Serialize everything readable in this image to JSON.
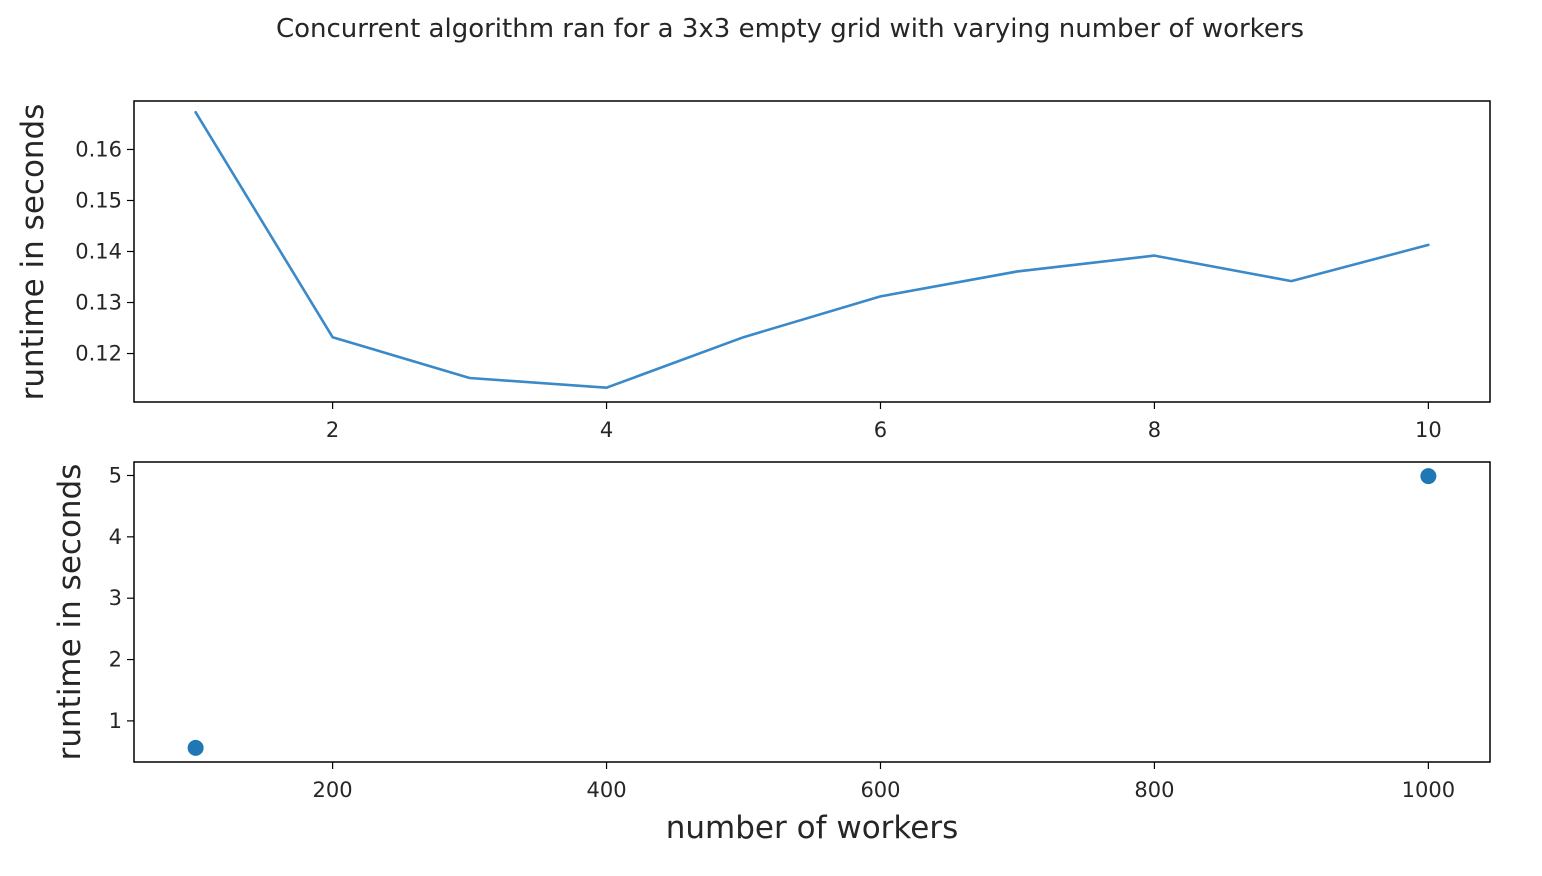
{
  "chart_data": {
    "title": "Concurrent algorithm ran for a 3x3 empty grid with varying number of workers",
    "charts": [
      {
        "type": "line",
        "xlabel": "",
        "ylabel": "runtime in seconds",
        "xlim": [
          0.55,
          10.45
        ],
        "ylim": [
          0.1105,
          0.1695
        ],
        "xticks": [
          "2",
          "4",
          "6",
          "8",
          "10"
        ],
        "yticks": [
          "0.12",
          "0.13",
          "0.14",
          "0.15",
          "0.16"
        ],
        "grid": false,
        "color": "#3a89c9",
        "x": [
          1,
          2,
          3,
          4,
          5,
          6,
          7,
          8,
          9,
          10
        ],
        "y": [
          0.1673,
          0.1232,
          0.1152,
          0.1133,
          0.1232,
          0.1312,
          0.1361,
          0.1392,
          0.1342,
          0.1413
        ]
      },
      {
        "type": "scatter",
        "xlabel": "number of workers",
        "ylabel": "runtime in seconds",
        "xlim": [
          55,
          1045
        ],
        "ylim": [
          0.33,
          5.22
        ],
        "xticks": [
          "200",
          "400",
          "600",
          "800",
          "1000"
        ],
        "yticks": [
          "1",
          "2",
          "3",
          "4",
          "5"
        ],
        "grid": false,
        "color": "#1f77b4",
        "x": [
          100,
          1000
        ],
        "y": [
          0.56,
          4.99
        ]
      }
    ]
  }
}
